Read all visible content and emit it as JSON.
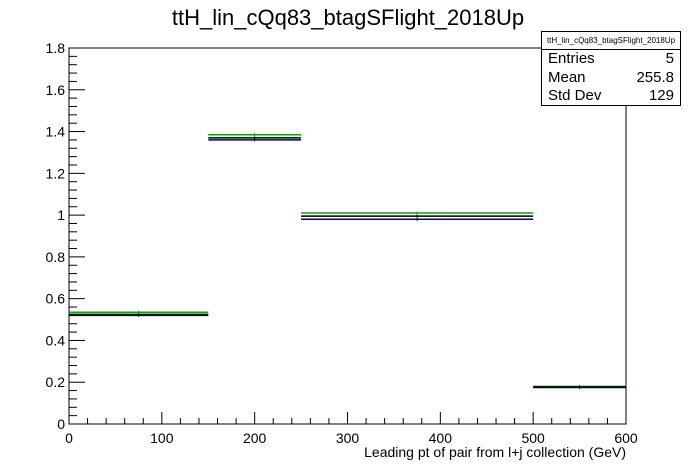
{
  "chart_data": {
    "type": "histogram",
    "title": "ttH_lin_cQq83_btagSFlight_2018Up",
    "xlabel": "Leading pt of pair from l+j collection (GeV)",
    "ylabel": "",
    "xlim": [
      0,
      600
    ],
    "ylim": [
      0,
      1.8
    ],
    "x_ticks": [
      "0",
      "100",
      "200",
      "300",
      "400",
      "500",
      "600"
    ],
    "y_ticks": [
      "0",
      "0.2",
      "0.4",
      "0.6",
      "0.8",
      "1",
      "1.2",
      "1.4",
      "1.6",
      "1.8"
    ],
    "bin_edges": [
      0,
      150,
      250,
      500,
      600
    ],
    "series": [
      {
        "color": "#000080",
        "values": [
          0.52,
          1.36,
          0.98,
          0.175
        ]
      },
      {
        "color": "#00aa00",
        "values": [
          0.535,
          1.385,
          1.01,
          0.18
        ]
      },
      {
        "color": "#000000",
        "values": [
          0.525,
          1.37,
          0.995,
          0.177
        ]
      }
    ],
    "grid": false,
    "stats": {
      "name": "ttH_lin_cQq83_btagSFlight_2018Up",
      "rows": [
        {
          "label": "Entries",
          "value": "5"
        },
        {
          "label": "Mean",
          "value": "255.8"
        },
        {
          "label": "Std Dev",
          "value": "129"
        }
      ]
    }
  }
}
